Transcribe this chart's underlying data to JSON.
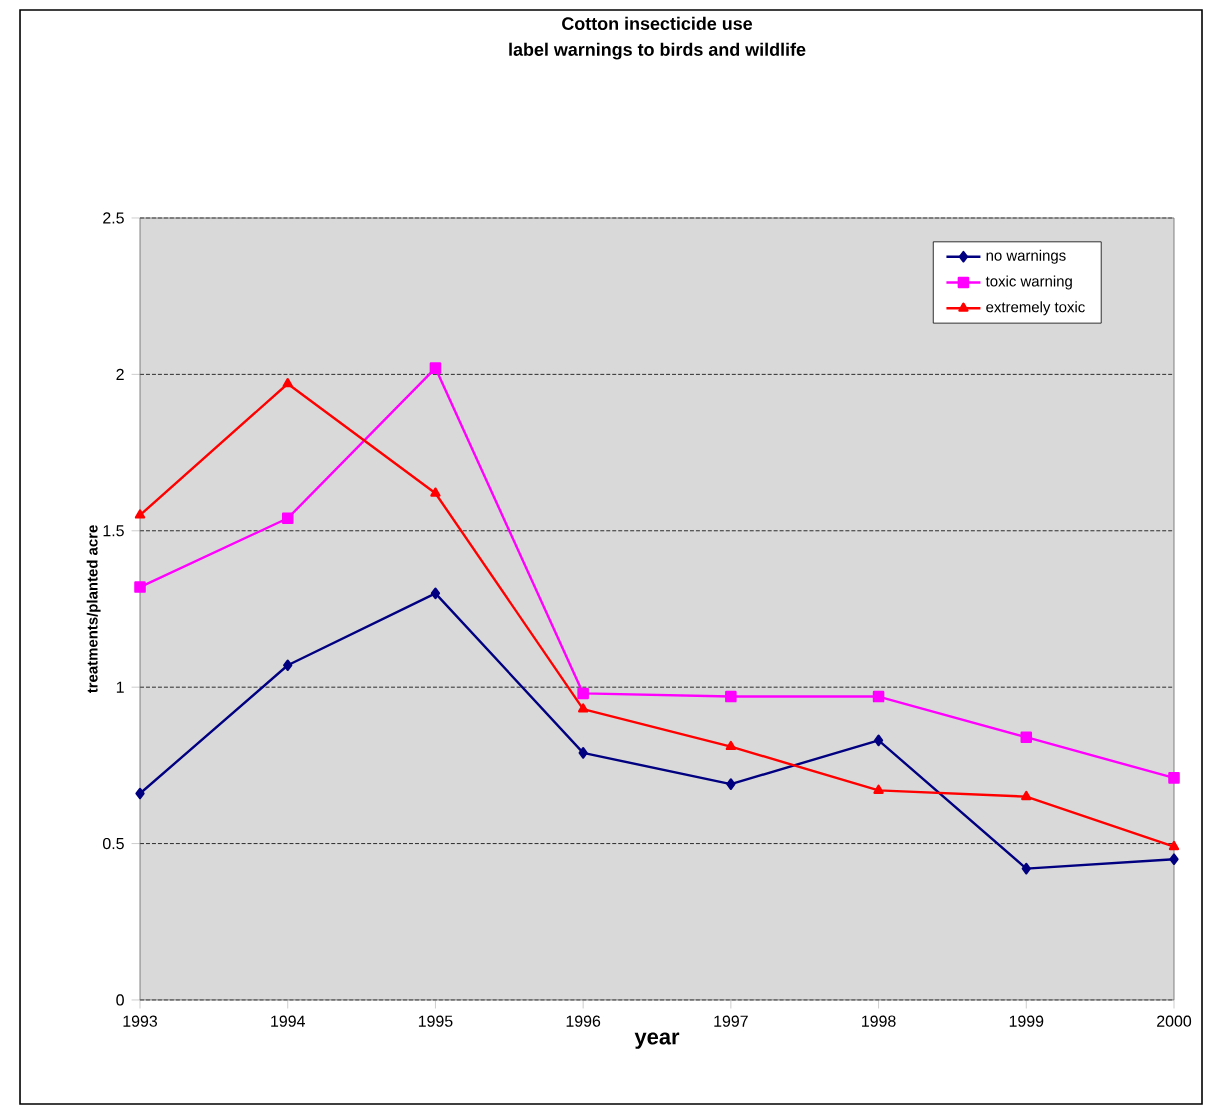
{
  "chart_data": {
    "type": "line",
    "title": "Cotton insecticide use",
    "subtitle": "label warnings to birds and wildlife",
    "xlabel": "year",
    "ylabel": "treatments/planted acre",
    "x": [
      1993,
      1994,
      1995,
      1996,
      1997,
      1998,
      1999,
      2000
    ],
    "series": [
      {
        "name": "no warnings",
        "color": "#000080",
        "marker": "diamond",
        "values": [
          0.66,
          1.07,
          1.3,
          0.79,
          0.69,
          0.83,
          0.42,
          0.45
        ]
      },
      {
        "name": "toxic warning",
        "color": "#ff00ff",
        "marker": "square",
        "values": [
          1.32,
          1.54,
          2.02,
          0.98,
          0.97,
          0.97,
          0.84,
          0.71
        ]
      },
      {
        "name": "extremely toxic",
        "color": "#ff0000",
        "marker": "triangle",
        "values": [
          1.55,
          1.97,
          1.62,
          0.93,
          0.81,
          0.67,
          0.65,
          0.49
        ]
      }
    ],
    "xlim": [
      1993,
      2000
    ],
    "xticks": [
      1993,
      1994,
      1995,
      1996,
      1997,
      1998,
      1999,
      2000
    ],
    "ylim": [
      0,
      2.5
    ],
    "yticks": [
      0,
      0.5,
      1,
      1.5,
      2,
      2.5
    ],
    "grid": "y",
    "legend": "top right",
    "line_style": "solid"
  }
}
